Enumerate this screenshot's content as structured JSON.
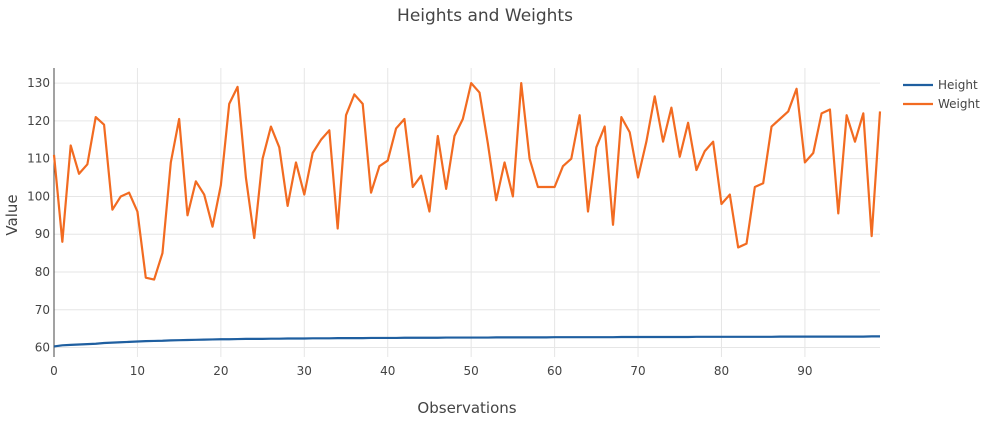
{
  "chart_data": {
    "type": "line",
    "title": "Heights and Weights",
    "xlabel": "Observations",
    "ylabel": "Value",
    "xlim": [
      0,
      99
    ],
    "ylim": [
      57.5,
      134
    ],
    "x_ticks": [
      0,
      10,
      20,
      30,
      40,
      50,
      60,
      70,
      80,
      90
    ],
    "y_ticks": [
      60,
      70,
      80,
      90,
      100,
      110,
      120,
      130
    ],
    "grid": true,
    "legend_position": "top-right",
    "series": [
      {
        "name": "Height",
        "color": "#1f5fa0",
        "values": [
          60.3,
          60.6,
          60.7,
          60.8,
          60.9,
          61.0,
          61.2,
          61.3,
          61.4,
          61.5,
          61.6,
          61.7,
          61.75,
          61.8,
          61.9,
          61.95,
          62.0,
          62.05,
          62.1,
          62.15,
          62.2,
          62.2,
          62.25,
          62.3,
          62.3,
          62.3,
          62.35,
          62.35,
          62.4,
          62.4,
          62.4,
          62.45,
          62.45,
          62.45,
          62.5,
          62.5,
          62.5,
          62.5,
          62.55,
          62.55,
          62.55,
          62.55,
          62.6,
          62.6,
          62.6,
          62.6,
          62.6,
          62.65,
          62.65,
          62.65,
          62.65,
          62.65,
          62.65,
          62.7,
          62.7,
          62.7,
          62.7,
          62.7,
          62.7,
          62.7,
          62.75,
          62.75,
          62.75,
          62.75,
          62.75,
          62.75,
          62.75,
          62.75,
          62.8,
          62.8,
          62.8,
          62.8,
          62.8,
          62.8,
          62.8,
          62.8,
          62.8,
          62.85,
          62.85,
          62.85,
          62.85,
          62.85,
          62.85,
          62.85,
          62.85,
          62.85,
          62.85,
          62.9,
          62.9,
          62.9,
          62.9,
          62.9,
          62.9,
          62.9,
          62.9,
          62.9,
          62.9,
          62.9,
          62.95,
          62.95
        ]
      },
      {
        "name": "Weight",
        "color": "#f26b21",
        "values": [
          111,
          88,
          113.5,
          106,
          108.5,
          121,
          119,
          96.5,
          100,
          101,
          96,
          78.5,
          78,
          85,
          109,
          120.5,
          95,
          104,
          100.5,
          92,
          103,
          124.5,
          129,
          105,
          89,
          110,
          118.5,
          113,
          97.5,
          109,
          100.5,
          111.5,
          115,
          117.5,
          91.5,
          121.5,
          127,
          124.5,
          101,
          108,
          109.5,
          118,
          120.5,
          102.5,
          105.5,
          96,
          116,
          102,
          116,
          120.5,
          130,
          127.5,
          114,
          99,
          109,
          100,
          130,
          110,
          102.5,
          102.5,
          102.5,
          108,
          110,
          121.5,
          96,
          113,
          118.5,
          92.5,
          121,
          117,
          105,
          114.5,
          126.5,
          114.5,
          123.5,
          110.5,
          119.5,
          107,
          112,
          114.5,
          98,
          100.5,
          86.5,
          87.5,
          102.5,
          103.5,
          118.5,
          120.5,
          122.5,
          128.5,
          109,
          111.5,
          122,
          123,
          95.5,
          121.5,
          114.5,
          122,
          89.5,
          122.5
        ]
      }
    ]
  }
}
